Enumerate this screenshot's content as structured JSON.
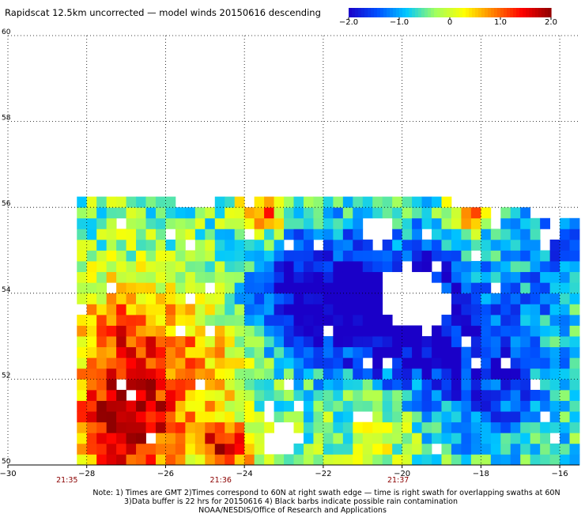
{
  "chart_data": {
    "type": "heatmap",
    "title": "Rapidscat 12.5km uncorrected — model winds 20150616 descending",
    "xlim": [
      -30,
      -15.5
    ],
    "ylim": [
      50,
      60
    ],
    "x_ticks": [
      {
        "value": -30,
        "label": "−30"
      },
      {
        "value": -28,
        "label": "−28"
      },
      {
        "value": -26,
        "label": "−26"
      },
      {
        "value": -24,
        "label": "−24"
      },
      {
        "value": -22,
        "label": "−22"
      },
      {
        "value": -20,
        "label": "−20"
      },
      {
        "value": -18,
        "label": "−18"
      },
      {
        "value": -16,
        "label": "−16"
      }
    ],
    "y_ticks": [
      {
        "value": 50,
        "label": "50"
      },
      {
        "value": 52,
        "label": "52"
      },
      {
        "value": 54,
        "label": "54"
      },
      {
        "value": 56,
        "label": "56"
      },
      {
        "value": 58,
        "label": "58"
      },
      {
        "value": 60,
        "label": "60"
      }
    ],
    "grid": true,
    "time_labels": [
      {
        "x": -28.5,
        "label": "21:35"
      },
      {
        "x": -24.6,
        "label": "21:36"
      },
      {
        "x": -20.1,
        "label": "21:37"
      }
    ],
    "colorbar": {
      "min": -2.0,
      "max": 2.0,
      "stops": [
        "#1a00c8",
        "#0050ff",
        "#00c8ff",
        "#a0ff60",
        "#ffff00",
        "#ff8000",
        "#ff0000",
        "#900000"
      ],
      "ticks": [
        {
          "value": -2.0,
          "label": "−2.0"
        },
        {
          "value": -1.0,
          "label": "−1.0"
        },
        {
          "value": 0,
          "label": "0"
        },
        {
          "value": 1.0,
          "label": "1.0"
        },
        {
          "value": 2.0,
          "label": "2.0"
        }
      ]
    },
    "cell_size_deg": 0.25,
    "region": {
      "lon": [
        -28.25,
        -15.5
      ],
      "lat": [
        50,
        56.25
      ],
      "top_edge_lat": [
        [
          -28.25,
          56.25
        ],
        [
          -26.0,
          56.0
        ],
        [
          -25.0,
          56.25
        ],
        [
          -23.0,
          56.25
        ],
        [
          -21.0,
          56.25
        ],
        [
          -19.0,
          56.0
        ],
        [
          -18.0,
          56.0
        ],
        [
          -17.0,
          55.75
        ],
        [
          -15.5,
          55.75
        ]
      ]
    },
    "anomaly_centers": [
      {
        "lon": -27.0,
        "lat": 51.0,
        "value": 2.4,
        "spread": 1.4
      },
      {
        "lon": -24.5,
        "lat": 50.4,
        "value": 2.0,
        "spread": 0.7
      },
      {
        "lon": -27.0,
        "lat": 53.2,
        "value": 1.3,
        "spread": 1.3
      },
      {
        "lon": -25.0,
        "lat": 52.5,
        "value": 0.9,
        "spread": 1.3
      },
      {
        "lon": -20.5,
        "lat": 51.0,
        "value": 0.6,
        "spread": 1.0
      },
      {
        "lon": -20.0,
        "lat": 53.5,
        "value": -2.0,
        "spread": 1.8
      },
      {
        "lon": -22.5,
        "lat": 54.0,
        "value": -1.6,
        "spread": 1.5
      },
      {
        "lon": -17.5,
        "lat": 52.0,
        "value": -1.0,
        "spread": 1.8
      },
      {
        "lon": -16.0,
        "lat": 55.0,
        "value": -0.8,
        "spread": 1.5
      },
      {
        "lon": -23.5,
        "lat": 55.9,
        "value": 1.6,
        "spread": 0.6
      },
      {
        "lon": -18.3,
        "lat": 56.0,
        "value": 1.6,
        "spread": 0.5
      }
    ],
    "gaps": [
      {
        "lon": -19.6,
        "lat": 53.9,
        "r": 0.9
      },
      {
        "lon": -23.0,
        "lat": 50.6,
        "r": 0.5
      },
      {
        "lon": -20.6,
        "lat": 55.5,
        "r": 0.4
      },
      {
        "lon": -16.3,
        "lat": 55.4,
        "r": 0.35
      }
    ],
    "notes": [
      "Note: 1) Times are GMT 2)Times correspond to 60N at right swath edge — time is right swath for overlapping swaths at 60N",
      "3)Data buffer is 22 hrs for 20150616 4) Black barbs indicate possible rain contamination",
      "NOAA/NESDIS/Office of Research and Applications"
    ]
  }
}
